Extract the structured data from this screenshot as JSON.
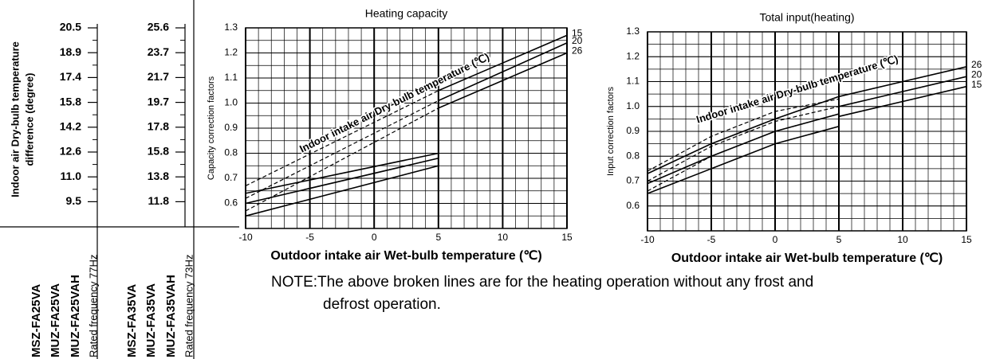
{
  "chart_data": [
    {
      "type": "line",
      "title": "Heating capacity",
      "y_label": "Capacity correction factors",
      "x_label": "Outdoor intake air Wet-bulb temperature (℃)",
      "annotation": "Indoor intake air Dry-bulb temperature (℃)",
      "xlim": [
        -10,
        15
      ],
      "xticks": [
        -10,
        -5,
        0,
        5,
        10,
        15
      ],
      "ylim": [
        0.5,
        1.3
      ],
      "yticks": [
        0.6,
        0.7,
        0.8,
        0.9,
        {
          "value": 1.0,
          "label": "1.0"
        },
        1.1,
        1.2,
        1.3
      ],
      "grid": true,
      "series": [
        {
          "name": "15",
          "color": "#000000",
          "x": [
            -10,
            5,
            5,
            15
          ],
          "values": [
            0.64,
            0.8,
            1.05,
            1.27
          ]
        },
        {
          "name": "20",
          "color": "#000000",
          "x": [
            -10,
            5,
            5,
            15
          ],
          "values": [
            0.6,
            0.78,
            1.01,
            1.24
          ]
        },
        {
          "name": "26",
          "color": "#000000",
          "x": [
            -10,
            5,
            5,
            15
          ],
          "values": [
            0.55,
            0.75,
            0.98,
            1.2
          ]
        },
        {
          "color": "#000000",
          "dashed": true,
          "x": [
            -10,
            5
          ],
          "values": [
            0.67,
            1.05
          ]
        },
        {
          "color": "#000000",
          "dashed": true,
          "x": [
            -10,
            5
          ],
          "values": [
            0.62,
            1.01
          ]
        },
        {
          "color": "#000000",
          "dashed": true,
          "x": [
            -10,
            5
          ],
          "values": [
            0.57,
            0.98
          ]
        }
      ]
    },
    {
      "type": "line",
      "title": "Total input(heating)",
      "y_label": "Input correction factors",
      "x_label": "Outdoor intake air Wet-bulb temperature (℃)",
      "annotation": "Indoor intake air Dry-bulb temperature (℃)",
      "xlim": [
        -10,
        15
      ],
      "xticks": [
        -10,
        -5,
        0,
        5,
        10,
        15
      ],
      "ylim": [
        0.5,
        1.3
      ],
      "yticks": [
        0.6,
        0.7,
        0.8,
        0.9,
        {
          "value": 1.0,
          "label": "1.0"
        },
        1.1,
        1.2,
        1.3
      ],
      "grid": true,
      "series": [
        {
          "name": "26",
          "color": "#000000",
          "x": [
            -10,
            -5,
            0,
            5,
            5,
            10,
            15
          ],
          "values": [
            0.73,
            0.85,
            0.95,
            1.04,
            1.04,
            1.1,
            1.16
          ]
        },
        {
          "name": "20",
          "color": "#000000",
          "x": [
            -10,
            -5,
            0,
            5,
            5,
            10,
            15
          ],
          "values": [
            0.69,
            0.8,
            0.9,
            0.97,
            1.0,
            1.06,
            1.12
          ]
        },
        {
          "name": "15",
          "color": "#000000",
          "x": [
            -10,
            -5,
            0,
            5,
            5,
            10,
            15
          ],
          "values": [
            0.65,
            0.75,
            0.85,
            0.92,
            0.96,
            1.02,
            1.08
          ]
        },
        {
          "color": "#000000",
          "dashed": true,
          "x": [
            -10,
            -5,
            0,
            5
          ],
          "values": [
            0.74,
            0.88,
            0.98,
            1.03
          ]
        },
        {
          "color": "#000000",
          "dashed": true,
          "x": [
            -10,
            -5,
            0,
            5
          ],
          "values": [
            0.7,
            0.84,
            0.94,
            1.0
          ]
        },
        {
          "color": "#000000",
          "dashed": true,
          "x": [
            -10,
            -5,
            0,
            5
          ],
          "values": [
            0.66,
            0.8,
            0.9,
            0.97
          ]
        }
      ]
    }
  ],
  "scale_label": [
    "Indoor air Dry-bulb temperature",
    "difference (degree)"
  ],
  "scales": [
    [
      "20.5",
      "18.9",
      "17.4",
      "15.8",
      "14.2",
      "12.6",
      "11.0",
      "9.5"
    ],
    [
      "25.6",
      "23.7",
      "21.7",
      "19.7",
      "17.8",
      "15.8",
      "13.8",
      "11.8"
    ]
  ],
  "models": [
    [
      "MSZ-FA25VA",
      "MUZ-FA25VA",
      "MUZ-FA25VAH",
      "Rated frequency 77Hz"
    ],
    [
      "MSZ-FA35VA",
      "MUZ-FA35VA",
      "MUZ-FA35VAH",
      "Rated frequency 73Hz"
    ]
  ],
  "note": [
    "NOTE:The above broken lines are for the heating operation without any frost and",
    "defrost operation."
  ]
}
